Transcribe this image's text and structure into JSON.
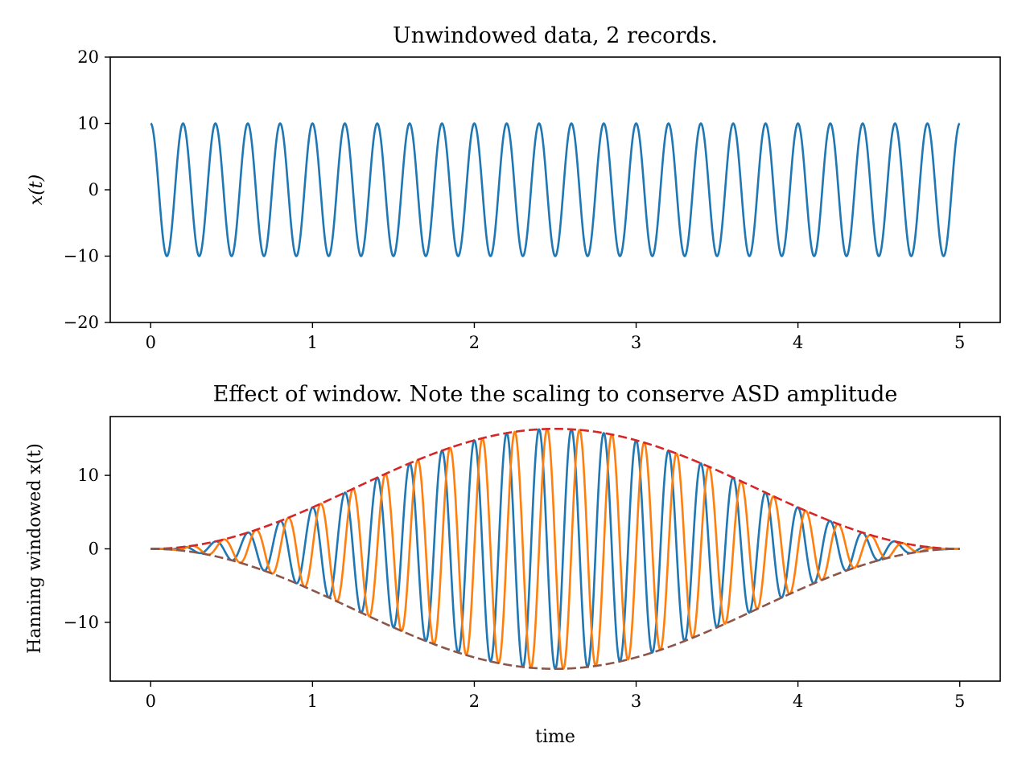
{
  "chart_data": [
    {
      "type": "line",
      "title": "Unwindowed data, 2 records.",
      "xlabel": "",
      "ylabel": "x(t)",
      "xlim": [
        -0.25,
        5.25
      ],
      "ylim": [
        -20,
        20
      ],
      "xticks": [
        0,
        1,
        2,
        3,
        4,
        5
      ],
      "yticks": [
        -20,
        -10,
        0,
        10,
        20
      ],
      "xtick_labels": [
        "0",
        "1",
        "2",
        "3",
        "4",
        "5"
      ],
      "ytick_labels": [
        "−20",
        "−10",
        "0",
        "10",
        "20"
      ],
      "series": [
        {
          "function": "cosine",
          "amplitude": 10,
          "frequency": 5,
          "x_range": [
            0,
            5
          ],
          "color": "#1f77b4",
          "style": "solid"
        }
      ]
    },
    {
      "type": "line",
      "title": "Effect of window. Note the scaling to conserve ASD amplitude",
      "xlabel": "time",
      "ylabel": "Hanning windowed x(t)",
      "xlim": [
        -0.25,
        5.25
      ],
      "ylim": [
        -18,
        18
      ],
      "xticks": [
        0,
        1,
        2,
        3,
        4,
        5
      ],
      "yticks": [
        -10,
        0,
        10
      ],
      "xtick_labels": [
        "0",
        "1",
        "2",
        "3",
        "4",
        "5"
      ],
      "ytick_labels": [
        "−10",
        "0",
        "10"
      ],
      "series": [
        {
          "function": "hann_windowed_cosine",
          "amplitude": 10,
          "window_scale": 1.633,
          "frequency": 5,
          "x_range": [
            0,
            5
          ],
          "color": "#1f77b4",
          "style": "solid"
        },
        {
          "function": "hann_windowed_sine",
          "amplitude": 10,
          "window_scale": 1.633,
          "frequency": 5,
          "x_range": [
            0,
            5
          ],
          "color": "#ff7f0e",
          "style": "solid"
        },
        {
          "function": "hann_envelope_upper",
          "amplitude": 10,
          "window_scale": 1.633,
          "x_range": [
            0,
            5
          ],
          "color": "#d62728",
          "style": "dashed"
        },
        {
          "function": "hann_envelope_lower",
          "amplitude": 10,
          "window_scale": 1.633,
          "x_range": [
            0,
            5
          ],
          "color": "#8c564b",
          "style": "dashed"
        }
      ]
    }
  ]
}
